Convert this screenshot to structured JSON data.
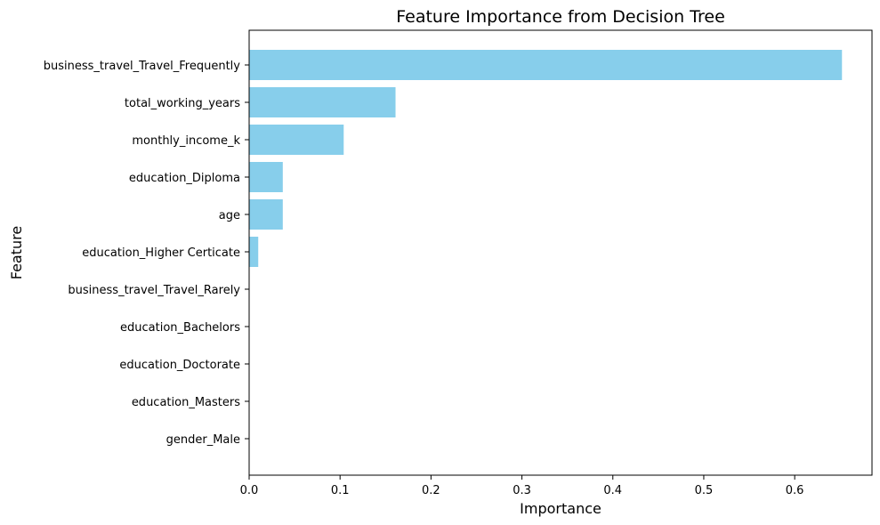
{
  "chart_data": {
    "type": "bar",
    "orientation": "horizontal",
    "title": "Feature Importance from Decision Tree",
    "xlabel": "Importance",
    "ylabel": "Feature",
    "xlim": [
      0,
      0.685
    ],
    "xticks": [
      0.0,
      0.1,
      0.2,
      0.3,
      0.4,
      0.5,
      0.6
    ],
    "xtick_labels": [
      "0.0",
      "0.1",
      "0.2",
      "0.3",
      "0.4",
      "0.5",
      "0.6"
    ],
    "grid": false,
    "legend": "none",
    "categories": [
      "business_travel_Travel_Frequently",
      "total_working_years",
      "monthly_income_k",
      "education_Diploma",
      "age",
      "education_Higher Certicate",
      "business_travel_Travel_Rarely",
      "education_Bachelors",
      "education_Doctorate",
      "education_Masters",
      "gender_Male"
    ],
    "values": [
      0.652,
      0.161,
      0.104,
      0.037,
      0.037,
      0.01,
      0.0,
      0.0,
      0.0,
      0.0,
      0.0
    ],
    "bar_color": "#87CEEB"
  }
}
